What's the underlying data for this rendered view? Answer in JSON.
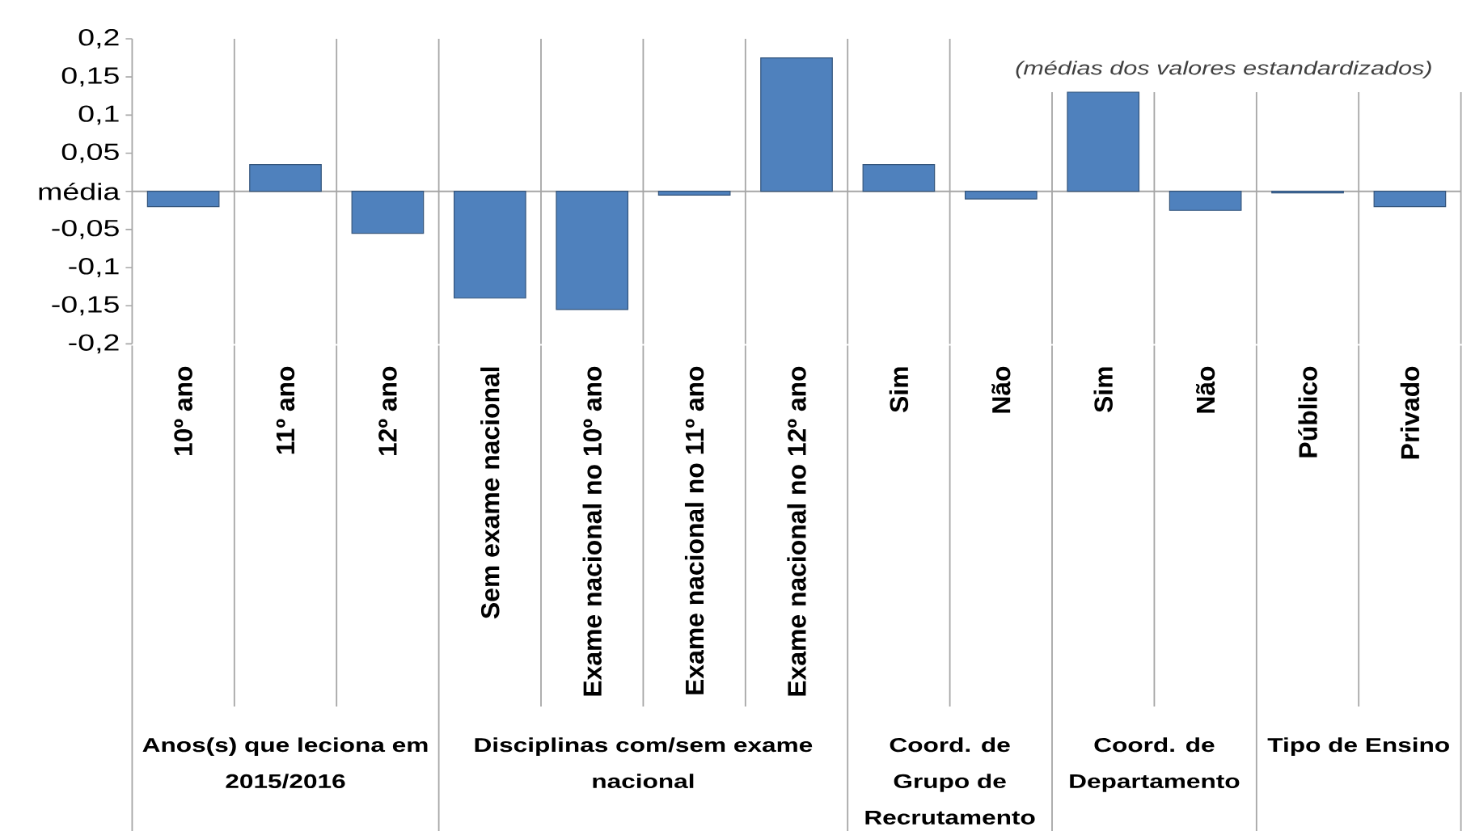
{
  "chart_data": {
    "type": "bar",
    "categories": [
      "10º ano",
      "11º ano",
      "12º ano",
      "Sem exame nacional",
      "Exame nacional no 10º ano",
      "Exame nacional no 11º ano",
      "Exame nacional no 12º ano",
      "Sim",
      "Não",
      "Sim",
      "Não",
      "Público",
      "Privado"
    ],
    "values": [
      -0.02,
      0.035,
      -0.055,
      -0.14,
      -0.155,
      -0.005,
      0.175,
      0.035,
      -0.01,
      0.13,
      -0.025,
      -0.002,
      -0.02
    ],
    "color": "#4f81bd",
    "ylim": [
      -0.2,
      0.2
    ],
    "yticks": [
      {
        "value": 0.2,
        "label": "0,2"
      },
      {
        "value": 0.15,
        "label": "0,15"
      },
      {
        "value": 0.1,
        "label": "0,1"
      },
      {
        "value": 0.05,
        "label": "0,05"
      },
      {
        "value": 0,
        "label": "média"
      },
      {
        "value": -0.05,
        "label": "-0,05"
      },
      {
        "value": -0.1,
        "label": "-0,1"
      },
      {
        "value": -0.15,
        "label": "-0,15"
      },
      {
        "value": -0.2,
        "label": "-0,2"
      }
    ],
    "annotations": [
      "(médias dos valores estandardizados)",
      "Anos(s) que leciona em 2015/2016",
      "Disciplinas com/sem exame nacional",
      "Coord. de Grupo de Recrutamento",
      "Coord. de Departamento",
      "Tipo de Ensino"
    ]
  }
}
